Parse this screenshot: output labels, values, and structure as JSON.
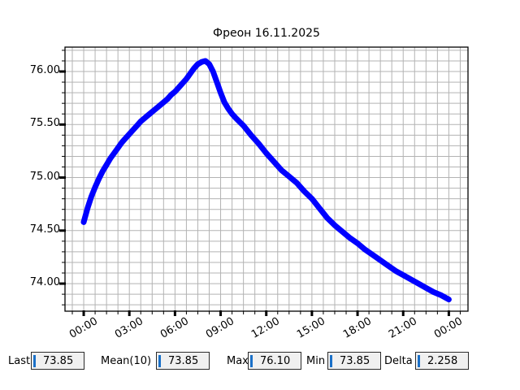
{
  "title": "Фреон 16.11.2025",
  "colors": {
    "line": "#0000ff",
    "grid": "#b3b3b3",
    "frame": "#000000",
    "entry_bg": "#f0f0f0",
    "entry_border": "#2b2b2b",
    "entry_cursor": "#1a70c8",
    "background": "#ffffff"
  },
  "chart_data": {
    "type": "line",
    "title": "Фреон 16.11.2025",
    "xlabel": "",
    "ylabel": "",
    "x_unit": "hours",
    "x_range_hours": [
      -1.23,
      25.26
    ],
    "y_range": [
      73.74,
      76.23
    ],
    "x_tick_hours": [
      0,
      3,
      6,
      9,
      12,
      15,
      18,
      21,
      24
    ],
    "x_tick_labels": [
      "00:00",
      "03:00",
      "06:00",
      "09:00",
      "12:00",
      "15:00",
      "18:00",
      "21:00",
      "00:00"
    ],
    "x_minor_step_hours": 0.75,
    "y_ticks": [
      74.0,
      74.5,
      75.0,
      75.5,
      76.0
    ],
    "y_tick_labels": [
      "74.00",
      "74.50",
      "75.00",
      "75.50",
      "76.00"
    ],
    "y_minor_step": 0.1,
    "grid": true,
    "legend": "none",
    "line_width": 7,
    "series": [
      {
        "name": "Фреон",
        "x": [
          0,
          0.25,
          0.5,
          0.75,
          1,
          1.25,
          1.5,
          1.75,
          2,
          2.25,
          2.5,
          2.75,
          3,
          3.25,
          3.5,
          3.75,
          4,
          4.25,
          4.5,
          4.75,
          5,
          5.25,
          5.5,
          5.75,
          6,
          6.25,
          6.5,
          6.75,
          7,
          7.25,
          7.5,
          7.75,
          8,
          8.25,
          8.5,
          8.75,
          9,
          9.25,
          9.5,
          9.75,
          10,
          10.5,
          11,
          11.5,
          12,
          12.5,
          13,
          13.5,
          14,
          14.5,
          15,
          15.5,
          16,
          16.5,
          17,
          17.5,
          18,
          18.5,
          19,
          19.5,
          20,
          20.5,
          21,
          21.5,
          22,
          22.5,
          23,
          23.5,
          24
        ],
        "y": [
          74.58,
          74.71,
          74.82,
          74.91,
          74.99,
          75.06,
          75.12,
          75.18,
          75.23,
          75.28,
          75.33,
          75.37,
          75.41,
          75.45,
          75.49,
          75.53,
          75.56,
          75.59,
          75.62,
          75.65,
          75.68,
          75.71,
          75.74,
          75.78,
          75.81,
          75.85,
          75.89,
          75.93,
          75.98,
          76.03,
          76.07,
          76.09,
          76.1,
          76.07,
          76.0,
          75.9,
          75.8,
          75.71,
          75.65,
          75.6,
          75.56,
          75.49,
          75.4,
          75.32,
          75.23,
          75.15,
          75.07,
          75.01,
          74.95,
          74.87,
          74.8,
          74.71,
          74.62,
          74.55,
          74.49,
          74.43,
          74.38,
          74.32,
          74.27,
          74.22,
          74.17,
          74.12,
          74.08,
          74.04,
          74.0,
          73.96,
          73.92,
          73.89,
          73.85
        ]
      }
    ]
  },
  "stats": {
    "items": [
      {
        "label": "Last",
        "value": "73.85"
      },
      {
        "label": "Mean(10)",
        "value": "73.85"
      },
      {
        "label": "Max",
        "value": "76.10"
      },
      {
        "label": "Min",
        "value": "73.85"
      },
      {
        "label": "Delta",
        "value": "2.258"
      }
    ]
  }
}
